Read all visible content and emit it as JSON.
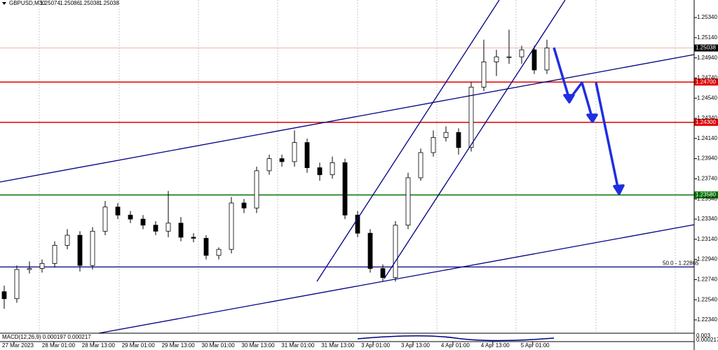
{
  "chart_data": {
    "type": "candlestick",
    "title": "GBPUSD,M30",
    "quote": [
      "1.25074",
      "1.25086",
      "1.25038",
      "1.25038"
    ],
    "indicator_label": "MACD(12,26,9) 0.000197 0.000217",
    "indicator_ticks": [
      "0.003",
      "0.000217"
    ],
    "xlabels": [
      "27 Mar 2023",
      "28 Mar 01:00",
      "28 Mar 13:00",
      "29 Mar 01:00",
      "29 Mar 13:00",
      "30 Mar 01:00",
      "30 Mar 13:00",
      "31 Mar 01:00",
      "31 Mar 13:00",
      "3 Apr 01:00",
      "3 Apr 13:00",
      "4 Apr 01:00",
      "4 Apr 13:00",
      "5 Apr 01:00"
    ],
    "open": [
      1.2262,
      1.2255,
      1.2284,
      1.2285,
      1.229,
      1.2308,
      1.2318,
      1.2288,
      1.2322,
      1.2346,
      1.2338,
      1.2334,
      1.2328,
      1.2322,
      1.233,
      1.2316,
      1.2315,
      1.2298,
      1.2304,
      1.235,
      1.2345,
      1.2382,
      1.2394,
      1.2391,
      1.241,
      1.2385,
      1.2378,
      1.239,
      1.2338,
      1.232,
      1.2285,
      1.2276,
      1.2328,
      1.2375,
      1.24,
      1.2415,
      1.242,
      1.2405,
      1.2465,
      1.249,
      1.2495,
      1.2495,
      1.2502,
      1.2482
    ],
    "high": [
      1.2268,
      1.2288,
      1.2292,
      1.2294,
      1.2312,
      1.2324,
      1.2322,
      1.2326,
      1.2352,
      1.235,
      1.2342,
      1.2338,
      1.2332,
      1.2362,
      1.2336,
      1.232,
      1.2318,
      1.2306,
      1.2356,
      1.2354,
      1.2386,
      1.2398,
      1.2398,
      1.2422,
      1.2414,
      1.239,
      1.2396,
      1.2394,
      1.2342,
      1.2324,
      1.2289,
      1.2332,
      1.238,
      1.2404,
      1.2422,
      1.2426,
      1.2424,
      1.247,
      1.2512,
      1.2502,
      1.2522,
      1.2506,
      1.2506,
      1.2512
    ],
    "low": [
      1.2245,
      1.2251,
      1.228,
      1.2281,
      1.2286,
      1.2304,
      1.2282,
      1.2284,
      1.2318,
      1.2334,
      1.233,
      1.2324,
      1.2318,
      1.2316,
      1.2312,
      1.2311,
      1.2294,
      1.2294,
      1.23,
      1.234,
      1.234,
      1.2378,
      1.2386,
      1.2386,
      1.238,
      1.2372,
      1.2374,
      1.2334,
      1.2316,
      1.2281,
      1.2272,
      1.2272,
      1.2324,
      1.2372,
      1.2396,
      1.2411,
      1.2398,
      1.2401,
      1.2461,
      1.2476,
      1.2488,
      1.2488,
      1.2478,
      1.2478
    ],
    "close": [
      1.2255,
      1.2284,
      1.2285,
      1.229,
      1.2308,
      1.2318,
      1.2288,
      1.2322,
      1.2346,
      1.2338,
      1.2334,
      1.2328,
      1.2322,
      1.233,
      1.2316,
      1.2315,
      1.2298,
      1.2304,
      1.235,
      1.2345,
      1.2382,
      1.2394,
      1.2391,
      1.241,
      1.2385,
      1.2378,
      1.239,
      1.2338,
      1.232,
      1.2285,
      1.2276,
      1.2328,
      1.2375,
      1.24,
      1.2415,
      1.242,
      1.2405,
      1.2465,
      1.249,
      1.2495,
      1.2495,
      1.2502,
      1.2482,
      1.25038
    ],
    "ylim": [
      1.22208,
      1.25514
    ],
    "yticks": [
      {
        "value": 1.2534,
        "label": "1.25340"
      },
      {
        "value": 1.2514,
        "label": "1.25140"
      },
      {
        "value": 1.2494,
        "label": "1.24940"
      },
      {
        "value": 1.2474,
        "label": "1.24740"
      },
      {
        "value": 1.2454,
        "label": "1.24540"
      },
      {
        "value": 1.2434,
        "label": "1.24340"
      },
      {
        "value": 1.2414,
        "label": "1.24140"
      },
      {
        "value": 1.2394,
        "label": "1.23940"
      },
      {
        "value": 1.2374,
        "label": "1.23740"
      },
      {
        "value": 1.2354,
        "label": "1.23540"
      },
      {
        "value": 1.2334,
        "label": "1.23340"
      },
      {
        "value": 1.2314,
        "label": "1.23140"
      },
      {
        "value": 1.2294,
        "label": "1.22940"
      },
      {
        "value": 1.2274,
        "label": "1.22740"
      },
      {
        "value": 1.2254,
        "label": "1.22540"
      },
      {
        "value": 1.2234,
        "label": "1.22340"
      }
    ],
    "levels": [
      {
        "value": 1.247,
        "label": "1.24700",
        "color": "#e00000"
      },
      {
        "value": 1.243,
        "label": "1.24300",
        "color": "#e00000"
      },
      {
        "value": 1.2358,
        "label": "1.23580",
        "color": "#007000"
      }
    ],
    "fib": {
      "value": 1.22865,
      "label": "50.0 - 1.22865",
      "color": "#000080"
    },
    "last": {
      "value": 1.25038,
      "label": "1.25038",
      "color": "#e8a090"
    }
  }
}
